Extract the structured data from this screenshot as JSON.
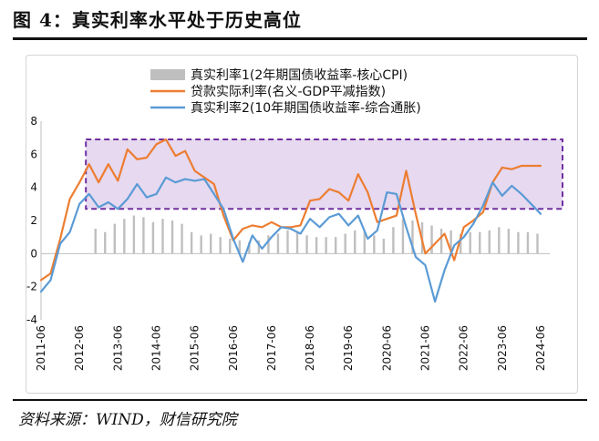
{
  "figure": {
    "title": "图 4：真实利率水平处于历史高位",
    "source": "资料来源：WIND，财信研究院"
  },
  "chart_data": {
    "type": "line",
    "legend_position": "top-center",
    "grid": false,
    "x_tick_labels": [
      "2011-06",
      "2012-06",
      "2013-06",
      "2014-06",
      "2015-06",
      "2016-06",
      "2017-06",
      "2018-06",
      "2019-06",
      "2020-06",
      "2021-06",
      "2022-06",
      "2023-06",
      "2024-06"
    ],
    "x_range": [
      "2011-06",
      "2024-06"
    ],
    "ylim": [
      -4,
      8
    ],
    "y_ticks": [
      -4,
      -2,
      0,
      2,
      4,
      6,
      8
    ],
    "highlight_box": {
      "x_from": "2012-08",
      "x_to": "2024-06",
      "y_from": 2.7,
      "y_to": 6.9,
      "color": "#7030a0",
      "fill": "#e6d9f0"
    },
    "series": [
      {
        "name": "真实利率1(2年期国债收益率-核心CPI)",
        "style": "bar",
        "color": "#bfbfbf",
        "x": [
          "2012-11",
          "2013-02",
          "2013-05",
          "2013-08",
          "2013-11",
          "2014-02",
          "2014-05",
          "2014-08",
          "2014-11",
          "2015-02",
          "2015-05",
          "2015-08",
          "2015-11",
          "2016-02",
          "2016-05",
          "2016-08",
          "2016-11",
          "2017-02",
          "2017-05",
          "2017-08",
          "2017-11",
          "2018-02",
          "2018-05",
          "2018-08",
          "2018-11",
          "2019-02",
          "2019-05",
          "2019-08",
          "2019-11",
          "2020-02",
          "2020-05",
          "2020-08",
          "2020-11",
          "2021-02",
          "2021-05",
          "2021-08",
          "2021-11",
          "2022-02",
          "2022-05",
          "2022-08",
          "2022-11",
          "2023-02",
          "2023-05",
          "2023-08",
          "2023-11",
          "2024-02",
          "2024-05"
        ],
        "values": [
          1.5,
          1.3,
          1.8,
          2.1,
          2.3,
          2.2,
          1.9,
          2.1,
          2.0,
          1.8,
          1.3,
          1.1,
          1.2,
          1.0,
          0.9,
          0.8,
          0.7,
          0.8,
          1.1,
          1.2,
          1.4,
          1.3,
          1.1,
          1.0,
          1.0,
          1.0,
          1.2,
          1.4,
          1.3,
          1.1,
          0.9,
          1.6,
          2.1,
          2.0,
          1.9,
          1.7,
          1.5,
          1.4,
          1.2,
          1.3,
          1.3,
          1.4,
          1.6,
          1.5,
          1.3,
          1.3,
          1.2
        ]
      },
      {
        "name": "贷款实际利率(名义-GDP平减指数)",
        "style": "line",
        "color": "#ed7d31",
        "x": [
          "2011-06",
          "2011-09",
          "2011-12",
          "2012-03",
          "2012-06",
          "2012-09",
          "2012-12",
          "2013-03",
          "2013-06",
          "2013-09",
          "2013-12",
          "2014-03",
          "2014-06",
          "2014-09",
          "2014-12",
          "2015-03",
          "2015-06",
          "2015-09",
          "2015-12",
          "2016-03",
          "2016-06",
          "2016-09",
          "2016-12",
          "2017-03",
          "2017-06",
          "2017-09",
          "2017-12",
          "2018-03",
          "2018-06",
          "2018-09",
          "2018-12",
          "2019-03",
          "2019-06",
          "2019-09",
          "2019-12",
          "2020-03",
          "2020-06",
          "2020-09",
          "2020-12",
          "2021-03",
          "2021-06",
          "2021-09",
          "2021-12",
          "2022-03",
          "2022-06",
          "2022-09",
          "2022-12",
          "2023-03",
          "2023-06",
          "2023-09",
          "2023-12",
          "2024-03",
          "2024-06"
        ],
        "values": [
          -1.6,
          -1.2,
          0.9,
          3.3,
          4.3,
          5.4,
          4.3,
          5.4,
          4.4,
          6.3,
          5.7,
          5.8,
          6.6,
          6.9,
          5.9,
          6.2,
          5.0,
          4.6,
          4.2,
          2.3,
          0.8,
          1.5,
          1.7,
          1.6,
          1.9,
          1.6,
          1.6,
          1.7,
          3.2,
          3.3,
          3.9,
          3.7,
          3.2,
          4.8,
          3.7,
          1.9,
          2.1,
          2.3,
          5.0,
          2.4,
          0.0,
          0.6,
          1.2,
          -0.4,
          1.6,
          2.0,
          2.5,
          4.3,
          5.2,
          5.1,
          5.3,
          5.3,
          5.3
        ]
      },
      {
        "name": "真实利率2(10年期国债收益率-综合通胀)",
        "style": "line",
        "color": "#5b9bd5",
        "x": [
          "2011-06",
          "2011-09",
          "2011-12",
          "2012-03",
          "2012-06",
          "2012-09",
          "2012-12",
          "2013-03",
          "2013-06",
          "2013-09",
          "2013-12",
          "2014-03",
          "2014-06",
          "2014-09",
          "2014-12",
          "2015-03",
          "2015-06",
          "2015-09",
          "2015-12",
          "2016-03",
          "2016-06",
          "2016-09",
          "2016-12",
          "2017-03",
          "2017-06",
          "2017-09",
          "2017-12",
          "2018-03",
          "2018-06",
          "2018-09",
          "2018-12",
          "2019-03",
          "2019-06",
          "2019-09",
          "2019-12",
          "2020-03",
          "2020-06",
          "2020-09",
          "2020-12",
          "2021-03",
          "2021-06",
          "2021-09",
          "2021-12",
          "2022-03",
          "2022-06",
          "2022-09",
          "2022-12",
          "2023-03",
          "2023-06",
          "2023-09",
          "2023-12",
          "2024-03",
          "2024-06"
        ],
        "values": [
          -2.3,
          -1.6,
          0.6,
          1.3,
          3.0,
          3.6,
          2.8,
          3.1,
          2.7,
          3.3,
          4.2,
          3.4,
          3.6,
          4.6,
          4.3,
          4.5,
          4.4,
          4.5,
          3.6,
          2.7,
          0.9,
          -0.5,
          1.1,
          0.3,
          1.0,
          1.6,
          1.5,
          1.2,
          2.1,
          1.6,
          2.2,
          2.4,
          1.7,
          2.3,
          0.9,
          1.4,
          3.7,
          3.6,
          1.6,
          -0.2,
          -0.7,
          -2.9,
          -1.0,
          0.5,
          1.0,
          1.8,
          2.9,
          4.3,
          3.5,
          4.1,
          3.6,
          3.0,
          2.4
        ]
      }
    ]
  }
}
